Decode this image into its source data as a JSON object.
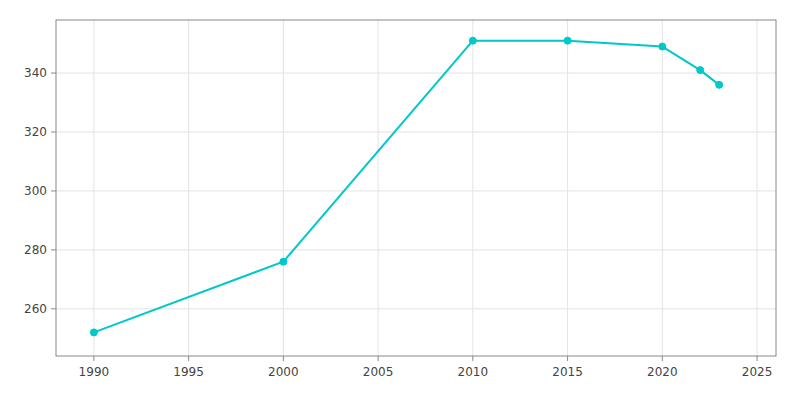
{
  "chart_data": {
    "type": "line",
    "x": [
      1990,
      2000,
      2010,
      2015,
      2020,
      2022,
      2023
    ],
    "values": [
      252,
      276,
      351,
      351,
      349,
      341,
      336
    ],
    "color": "#00C8C8",
    "marker": "circle",
    "xlim": [
      1988,
      2026
    ],
    "ylim": [
      244,
      358
    ],
    "xticks": [
      1990,
      1995,
      2000,
      2005,
      2010,
      2015,
      2020,
      2025
    ],
    "yticks": [
      260,
      280,
      300,
      320,
      340
    ],
    "grid": true
  }
}
